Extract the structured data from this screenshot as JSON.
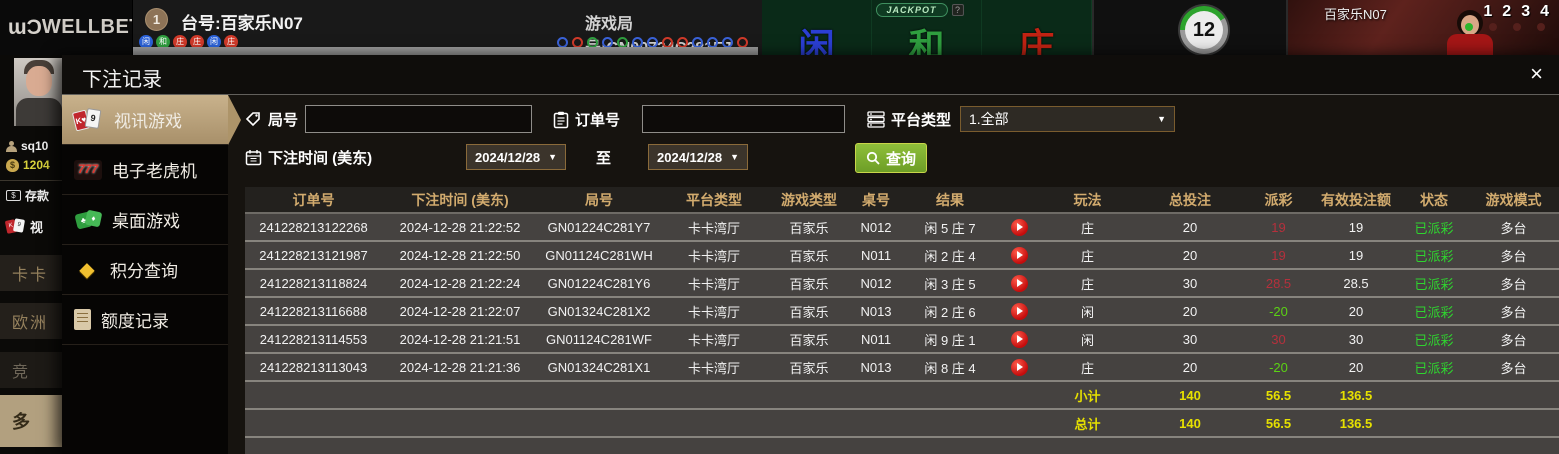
{
  "top_bar": {
    "logo_mark": "ɯƆ",
    "logo_word": "WELLBET",
    "table_badge": "1",
    "table_label": "台号:百家乐N07",
    "round_label": "游戏局号:GN00724C281FJ",
    "bet_zones": [
      "闲",
      "和",
      "庄"
    ],
    "jackpot_label": "JACKPOT",
    "jackpot_help": "?",
    "timer_value": "12",
    "video_title": "百家乐N07",
    "camera_numbers": [
      "1",
      "2",
      "3",
      "4"
    ],
    "beads": [
      {
        "char": "闲",
        "color": "#2b62d9"
      },
      {
        "char": "和",
        "color": "#2f9e3f"
      },
      {
        "char": "庄",
        "color": "#d03a2a"
      },
      {
        "char": "庄",
        "color": "#d03a2a"
      },
      {
        "char": "闲",
        "color": "#2b62d9"
      },
      {
        "char": "庄",
        "color": "#d03a2a"
      }
    ],
    "road_dots": [
      "#3a62d8",
      "#d03a2a",
      "#2f9e3f",
      "#3a62d8",
      "#2f9e3f",
      "#3a62d8",
      "#3a62d8",
      "#d03a2a",
      "#d03a2a",
      "#3a62d8",
      "#3a62d8",
      "#3a62d8",
      "#d03a2a"
    ]
  },
  "left_rail": {
    "username": "sq10",
    "balance": "1204",
    "deposit_label": "存款",
    "video_label": "视",
    "nav_items": [
      "卡卡",
      "欧洲",
      "竞",
      "多"
    ]
  },
  "modal": {
    "title": "下注记录",
    "close": "×",
    "sidebar": [
      {
        "label": "视讯游戏"
      },
      {
        "label": "电子老虎机"
      },
      {
        "label": "桌面游戏"
      },
      {
        "label": "积分查询"
      },
      {
        "label": "额度记录"
      }
    ],
    "filters": {
      "round_label": "局号",
      "order_label": "订单号",
      "platform_label": "平台类型",
      "platform_value": "1.全部",
      "time_label": "下注时间 (美东)",
      "date_from": "2024/12/28",
      "date_to": "2024/12/28",
      "to_label": "至",
      "search_label": "查询",
      "caret": "▼"
    },
    "table": {
      "columns": [
        "订单号",
        "下注时间 (美东)",
        "局号",
        "平台类型",
        "游戏类型",
        "桌号",
        "结果",
        "",
        "玩法",
        "总投注",
        "派彩",
        "有效投注额",
        "状态",
        "游戏模式"
      ],
      "rows": [
        {
          "order": "241228213122268",
          "time": "2024-12-28 21:22:52",
          "round": "GN01224C281Y7",
          "platform": "卡卡湾厅",
          "game": "百家乐",
          "table": "N012",
          "result": "闲 5 庄 7",
          "play": "庄",
          "bet": "20",
          "payout": "19",
          "payout_color": "red",
          "valid": "19",
          "status": "已派彩",
          "mode": "多台"
        },
        {
          "order": "241228213121987",
          "time": "2024-12-28 21:22:50",
          "round": "GN01124C281WH",
          "platform": "卡卡湾厅",
          "game": "百家乐",
          "table": "N011",
          "result": "闲 2 庄 4",
          "play": "庄",
          "bet": "20",
          "payout": "19",
          "payout_color": "red",
          "valid": "19",
          "status": "已派彩",
          "mode": "多台"
        },
        {
          "order": "241228213118824",
          "time": "2024-12-28 21:22:24",
          "round": "GN01224C281Y6",
          "platform": "卡卡湾厅",
          "game": "百家乐",
          "table": "N012",
          "result": "闲 3 庄 5",
          "play": "庄",
          "bet": "30",
          "payout": "28.5",
          "payout_color": "red",
          "valid": "28.5",
          "status": "已派彩",
          "mode": "多台"
        },
        {
          "order": "241228213116688",
          "time": "2024-12-28 21:22:07",
          "round": "GN01324C281X2",
          "platform": "卡卡湾厅",
          "game": "百家乐",
          "table": "N013",
          "result": "闲 2 庄 6",
          "play": "闲",
          "bet": "20",
          "payout": "-20",
          "payout_color": "green",
          "valid": "20",
          "status": "已派彩",
          "mode": "多台"
        },
        {
          "order": "241228213114553",
          "time": "2024-12-28 21:21:51",
          "round": "GN01124C281WF",
          "platform": "卡卡湾厅",
          "game": "百家乐",
          "table": "N011",
          "result": "闲 9 庄 1",
          "play": "闲",
          "bet": "30",
          "payout": "30",
          "payout_color": "red",
          "valid": "30",
          "status": "已派彩",
          "mode": "多台"
        },
        {
          "order": "241228213113043",
          "time": "2024-12-28 21:21:36",
          "round": "GN01324C281X1",
          "platform": "卡卡湾厅",
          "game": "百家乐",
          "table": "N013",
          "result": "闲 8 庄 4",
          "play": "庄",
          "bet": "20",
          "payout": "-20",
          "payout_color": "green",
          "valid": "20",
          "status": "已派彩",
          "mode": "多台"
        }
      ],
      "subtotal": {
        "label": "小计",
        "bet": "140",
        "payout": "56.5",
        "valid": "136.5"
      },
      "total": {
        "label": "总计",
        "bet": "140",
        "payout": "56.5",
        "valid": "136.5"
      }
    }
  },
  "colors": {
    "accent_tan": "#ad9469",
    "header_gold": "#d2ab6e",
    "win_red": "#b5303c",
    "loss_green": "#5bd214",
    "status_green": "#2fd42f",
    "total_yellow": "#e6e000",
    "search_green": "#7aa62e"
  }
}
